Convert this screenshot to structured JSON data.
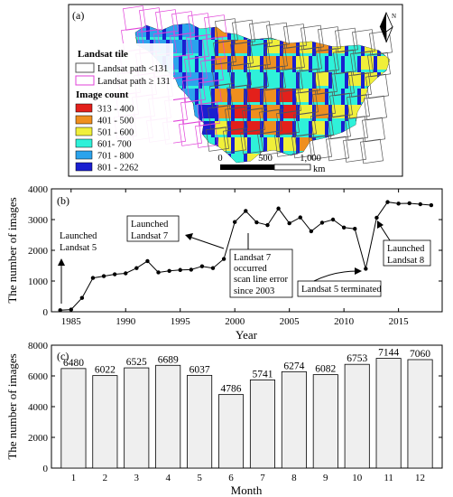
{
  "panels": {
    "a": "(a)",
    "b": "(b)",
    "c": "(c)"
  },
  "map": {
    "legend_tile_title": "Landsat tile",
    "path_lt": "Landsat path <131",
    "path_ge": "Landsat path ≥ 131",
    "legend_count_title": "Image count",
    "classes": [
      {
        "label": "313 - 400",
        "color": "#e3201b"
      },
      {
        "label": "401 - 500",
        "color": "#ef8f1e"
      },
      {
        "label": "501 - 600",
        "color": "#f0ef3a"
      },
      {
        "label": "601- 700",
        "color": "#2ff1d9"
      },
      {
        "label": "701 - 800",
        "color": "#2ba3ec"
      },
      {
        "label": "801 - 2262",
        "color": "#1a1fd0"
      }
    ],
    "north": "N",
    "scale_labels": [
      "0",
      "500",
      "1,000"
    ],
    "scale_unit": "km",
    "tile_colors": {
      "path_lt": "#555555",
      "path_ge": "#e040d8"
    }
  },
  "chart_data": [
    {
      "type": "line",
      "ylabel": "The number of images",
      "xlabel": "Year",
      "xlim": [
        1983.2,
        2019
      ],
      "ylim": [
        0,
        4000
      ],
      "xticks": [
        1985,
        1990,
        1995,
        2000,
        2005,
        2010,
        2015
      ],
      "yticks": [
        0,
        1000,
        2000,
        3000,
        4000
      ],
      "x": [
        1984,
        1985,
        1986,
        1987,
        1988,
        1989,
        1990,
        1991,
        1992,
        1993,
        1994,
        1995,
        1996,
        1997,
        1998,
        1999,
        2000,
        2001,
        2002,
        2003,
        2004,
        2005,
        2006,
        2007,
        2008,
        2009,
        2010,
        2011,
        2012,
        2013,
        2014,
        2015,
        2016,
        2017,
        2018
      ],
      "values": [
        50,
        70,
        450,
        1100,
        1160,
        1220,
        1250,
        1420,
        1650,
        1280,
        1330,
        1360,
        1370,
        1480,
        1420,
        1720,
        2920,
        3280,
        2910,
        2820,
        3360,
        2880,
        3070,
        2620,
        2900,
        3000,
        2740,
        2700,
        1400,
        3060,
        3570,
        3520,
        3530,
        3500,
        3470
      ],
      "annotations": [
        {
          "lines": [
            "Launched",
            "Landsat 5"
          ]
        },
        {
          "lines": [
            "Launched",
            "Landsat 7"
          ]
        },
        {
          "lines": [
            "Landsat 7",
            "occurred",
            "scan line error",
            "since 2003"
          ]
        },
        {
          "lines": [
            "Landsat 5 terminated"
          ]
        },
        {
          "lines": [
            "Launched",
            "Landsat 8"
          ]
        }
      ]
    },
    {
      "type": "bar",
      "ylabel": "The number of images",
      "xlabel": "Month",
      "ylim": [
        0,
        8000
      ],
      "yticks": [
        0,
        2000,
        4000,
        6000,
        8000
      ],
      "categories": [
        "1",
        "2",
        "3",
        "4",
        "5",
        "6",
        "7",
        "8",
        "9",
        "10",
        "11",
        "12"
      ],
      "values": [
        6480,
        6022,
        6525,
        6689,
        6037,
        4786,
        5741,
        6274,
        6082,
        6753,
        7144,
        7060
      ],
      "bar_color": "#efefef"
    }
  ]
}
